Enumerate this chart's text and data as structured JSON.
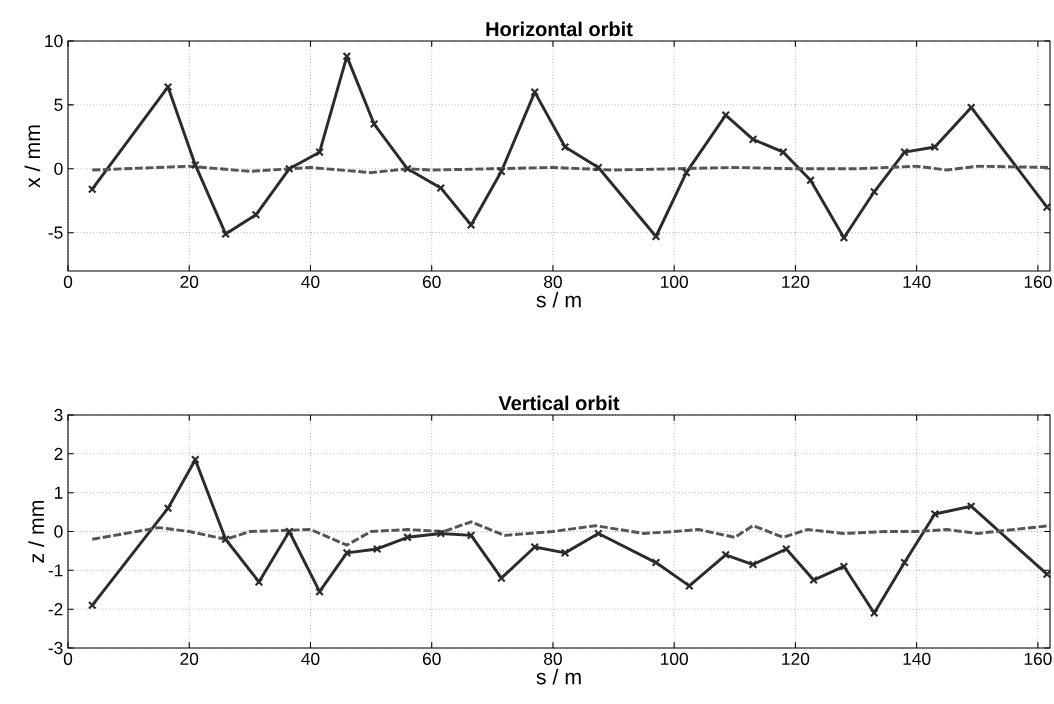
{
  "chart_data": [
    {
      "type": "line",
      "title": "Horizontal orbit",
      "xlabel": "s / m",
      "ylabel": "x / mm",
      "xlim": [
        0,
        162
      ],
      "ylim": [
        -8,
        10
      ],
      "xticks": [
        0,
        20,
        40,
        60,
        80,
        100,
        120,
        140,
        160
      ],
      "yticks": [
        -5,
        0,
        5,
        10
      ],
      "grid": true,
      "series": [
        {
          "color": "#2b2b2b",
          "marker": "cross",
          "line_style": "solid",
          "x": [
            4,
            16.5,
            21,
            26,
            31,
            36.5,
            41.5,
            46,
            50.5,
            56,
            61.5,
            66.5,
            71.5,
            77,
            82,
            87.5,
            97,
            102,
            108.5,
            113,
            118,
            122.5,
            128,
            133,
            138,
            143,
            149,
            161.5
          ],
          "values": [
            -1.6,
            6.4,
            0.3,
            -5.1,
            -3.6,
            0,
            1.3,
            8.8,
            3.5,
            0,
            -1.5,
            -4.4,
            -0.2,
            6,
            1.7,
            0.1,
            -5.3,
            -0.3,
            4.2,
            2.3,
            1.3,
            -0.9,
            -5.4,
            -1.8,
            1.3,
            1.7,
            4.8,
            -3
          ]
        },
        {
          "color": "#555555",
          "marker": "none",
          "line_style": "dashed",
          "x": [
            4,
            20,
            30,
            40,
            50,
            56,
            60,
            70,
            80,
            90,
            100,
            110,
            120,
            130,
            140,
            145,
            150,
            162
          ],
          "values": [
            -0.1,
            0.2,
            -0.2,
            0.1,
            -0.3,
            0,
            -0.1,
            0,
            0.1,
            -0.1,
            0,
            0.1,
            0,
            0,
            0.2,
            -0.1,
            0.2,
            0.1
          ]
        }
      ]
    },
    {
      "type": "line",
      "title": "Vertical orbit",
      "xlabel": "s / m",
      "ylabel": "z / mm",
      "xlim": [
        0,
        162
      ],
      "ylim": [
        -3,
        3
      ],
      "xticks": [
        0,
        20,
        40,
        60,
        80,
        100,
        120,
        140,
        160
      ],
      "yticks": [
        -3,
        -2,
        -1,
        0,
        1,
        2,
        3
      ],
      "grid": true,
      "series": [
        {
          "color": "#2b2b2b",
          "marker": "cross",
          "line_style": "solid",
          "x": [
            4,
            16.5,
            21,
            26,
            31.5,
            36.5,
            41.5,
            46,
            51,
            56,
            61.5,
            66.5,
            71.5,
            77,
            82,
            87.5,
            97,
            102.5,
            108.5,
            113,
            118.5,
            123,
            128,
            133,
            138,
            143,
            149,
            161.5
          ],
          "values": [
            -1.9,
            0.6,
            1.85,
            -0.2,
            -1.3,
            0,
            -1.55,
            -0.55,
            -0.45,
            -0.15,
            -0.05,
            -0.1,
            -1.2,
            -0.4,
            -0.55,
            -0.05,
            -0.8,
            -1.4,
            -0.6,
            -0.85,
            -0.45,
            -1.25,
            -0.9,
            -2.1,
            -0.8,
            0.45,
            0.65,
            -1.1
          ]
        },
        {
          "color": "#555555",
          "marker": "none",
          "line_style": "dashed",
          "x": [
            4,
            15,
            20,
            26,
            30,
            40,
            46,
            50,
            56,
            62,
            66.5,
            72,
            80,
            87,
            95,
            100,
            104,
            110,
            113,
            118,
            122,
            128,
            135,
            140,
            145,
            150,
            162
          ],
          "values": [
            -0.2,
            0.1,
            0,
            -0.2,
            0,
            0.05,
            -0.35,
            0,
            0.05,
            0,
            0.25,
            -0.1,
            0,
            0.15,
            -0.05,
            0,
            0.05,
            -0.15,
            0.15,
            -0.15,
            0.05,
            -0.05,
            0,
            0,
            0.05,
            -0.05,
            0.15
          ]
        }
      ]
    }
  ]
}
